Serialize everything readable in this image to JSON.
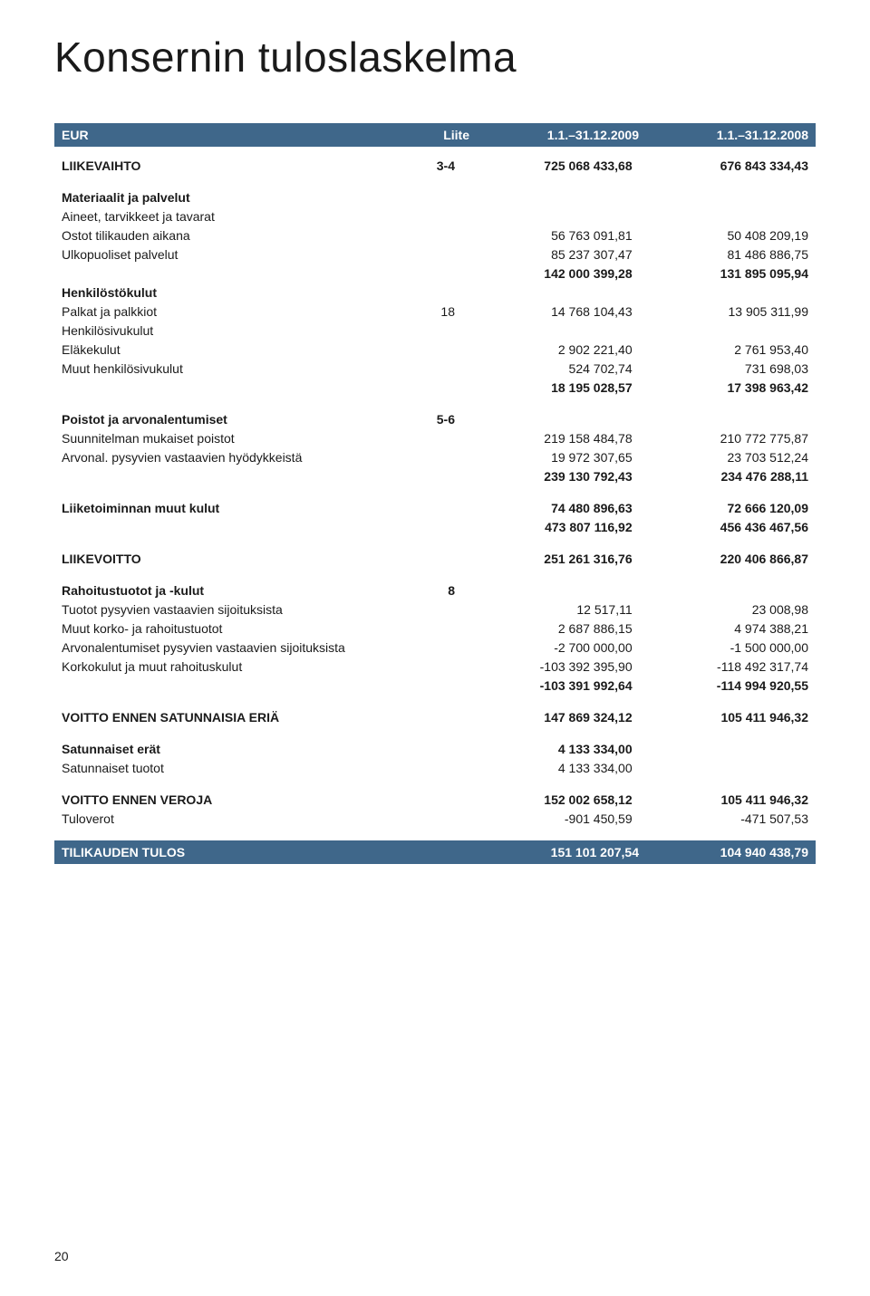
{
  "title": "Konsernin tuloslaskelma",
  "header": {
    "currency": "EUR",
    "liite": "Liite",
    "col1": "1.1.–31.12.2009",
    "col2": "1.1.–31.12.2008"
  },
  "rows": [
    {
      "bold": true,
      "label": "LIIKEVAIHTO",
      "liite": "3-4",
      "a": "725 068 433,68",
      "b": "676 843 334,43"
    },
    {
      "spacer": true
    },
    {
      "bold": true,
      "label": "Materiaalit ja palvelut"
    },
    {
      "indent": true,
      "label": "Aineet, tarvikkeet ja tavarat"
    },
    {
      "indent": true,
      "label": "Ostot tilikauden aikana",
      "a": "56 763 091,81",
      "b": "50 408 209,19"
    },
    {
      "indent": true,
      "label": "Ulkopuoliset palvelut",
      "a": "85 237 307,47",
      "b": "81 486 886,75"
    },
    {
      "bold": true,
      "a": "142 000 399,28",
      "b": "131 895 095,94"
    },
    {
      "bold": true,
      "label": "Henkilöstökulut"
    },
    {
      "indent": true,
      "label": "Palkat ja palkkiot",
      "liite": "18",
      "a": "14 768 104,43",
      "b": "13 905 311,99"
    },
    {
      "indent": true,
      "label": "Henkilösivukulut"
    },
    {
      "indent": true,
      "label": "Eläkekulut",
      "a": "2 902 221,40",
      "b": "2 761 953,40"
    },
    {
      "indent": true,
      "label": "Muut henkilösivukulut",
      "a": "524 702,74",
      "b": "731 698,03"
    },
    {
      "bold": true,
      "a": "18 195 028,57",
      "b": "17 398 963,42"
    },
    {
      "spacer": true
    },
    {
      "bold": true,
      "label": "Poistot ja arvonalentumiset",
      "liite": "5-6"
    },
    {
      "indent": true,
      "label": "Suunnitelman mukaiset poistot",
      "a": "219 158 484,78",
      "b": "210 772 775,87"
    },
    {
      "indent": true,
      "label": "Arvonal. pysyvien vastaavien hyödykkeistä",
      "a": "19 972 307,65",
      "b": "23 703 512,24"
    },
    {
      "bold": true,
      "a": "239 130 792,43",
      "b": "234 476 288,11"
    },
    {
      "spacer": true
    },
    {
      "bold": true,
      "label": "Liiketoiminnan muut kulut",
      "a": "74 480 896,63",
      "b": "72 666 120,09"
    },
    {
      "bold": true,
      "a": "473 807 116,92",
      "b": "456 436 467,56"
    },
    {
      "spacer": true
    },
    {
      "bold": true,
      "label": "LIIKEVOITTO",
      "a": "251 261 316,76",
      "b": "220 406 866,87"
    },
    {
      "spacer": true
    },
    {
      "bold": true,
      "label": "Rahoitustuotot ja -kulut",
      "liite": "8"
    },
    {
      "indent": true,
      "label": "Tuotot pysyvien vastaavien sijoituksista",
      "a": "12 517,11",
      "b": "23 008,98"
    },
    {
      "indent": true,
      "label": "Muut korko- ja rahoitustuotot",
      "a": "2 687 886,15",
      "b": "4 974 388,21"
    },
    {
      "indent": true,
      "label": "Arvonalentumiset pysyvien vastaavien sijoituksista",
      "a": "-2 700 000,00",
      "b": "-1 500 000,00"
    },
    {
      "indent": true,
      "label": "Korkokulut ja muut rahoituskulut",
      "a": "-103 392 395,90",
      "b": "-118 492 317,74"
    },
    {
      "bold": true,
      "a": "-103 391 992,64",
      "b": "-114 994 920,55"
    },
    {
      "spacer": true
    },
    {
      "bold": true,
      "label": "VOITTO ENNEN SATUNNAISIA ERIÄ",
      "a": "147 869 324,12",
      "b": "105 411 946,32"
    },
    {
      "spacer": true
    },
    {
      "bold": true,
      "label": "Satunnaiset erät",
      "a": "4 133 334,00"
    },
    {
      "indent": true,
      "label": "Satunnaiset tuotot",
      "a": "4 133 334,00"
    },
    {
      "spacer": true
    },
    {
      "bold": true,
      "label": "VOITTO ENNEN VEROJA",
      "a": "152 002 658,12",
      "b": "105 411 946,32"
    },
    {
      "label": "Tuloverot",
      "a": "-901 450,59",
      "b": "-471 507,53"
    }
  ],
  "footer": {
    "label": "TILIKAUDEN TULOS",
    "a": "151 101 207,54",
    "b": "104 940 438,79"
  },
  "page_number": "20",
  "colors": {
    "bar_bg": "#3f678a",
    "bar_fg": "#ffffff",
    "text": "#1a1a1a",
    "page_bg": "#ffffff"
  },
  "typography": {
    "title_fontsize": 46,
    "title_weight": 300,
    "body_fontsize": 14,
    "font_family": "Helvetica Neue, Helvetica, Arial, sans-serif"
  }
}
